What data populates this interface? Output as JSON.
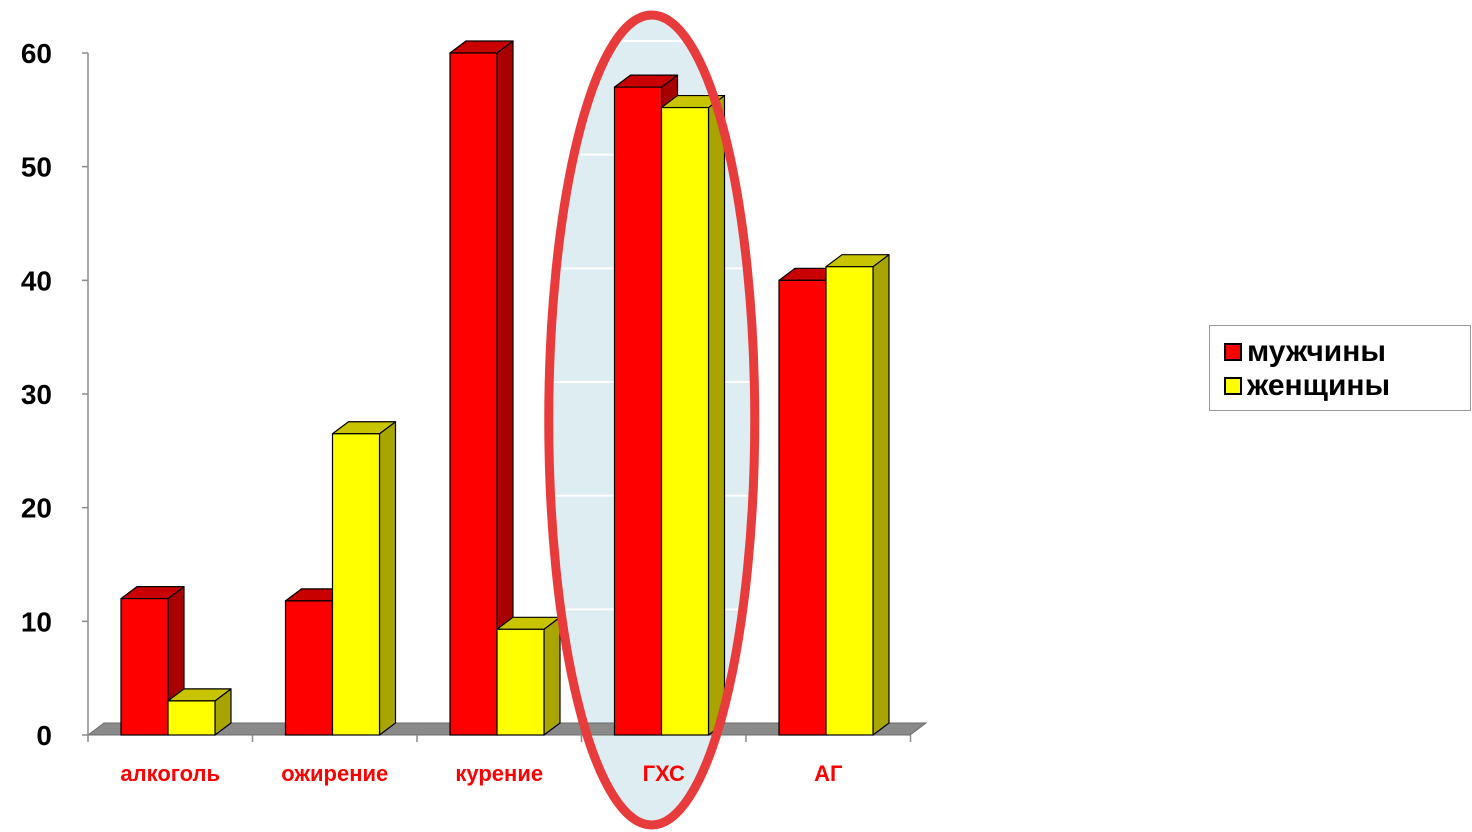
{
  "chart_data": {
    "type": "bar",
    "categories": [
      "алкоголь",
      "ожирение",
      "курение",
      "ГХС",
      "АГ"
    ],
    "series": [
      {
        "name": "мужчины",
        "values": [
          12,
          11.8,
          60,
          57,
          40
        ],
        "color": "#ff0000",
        "side_color": "#a80000",
        "top_color": "#c80000"
      },
      {
        "name": "женщины",
        "values": [
          3,
          26.5,
          9.3,
          55.2,
          41.2
        ],
        "color": "#ffff00",
        "side_color": "#a8a400",
        "top_color": "#c8c400"
      }
    ],
    "yticks": [
      "0",
      "10",
      "20",
      "30",
      "40",
      "50",
      "60"
    ],
    "ylim": [
      0,
      60
    ],
    "grid": true,
    "legend_position": "right",
    "category_label_color": "#ff0000",
    "highlight": {
      "category": "ГХС",
      "stroke": "#e83c3c",
      "fill": "#ddedf2"
    }
  }
}
